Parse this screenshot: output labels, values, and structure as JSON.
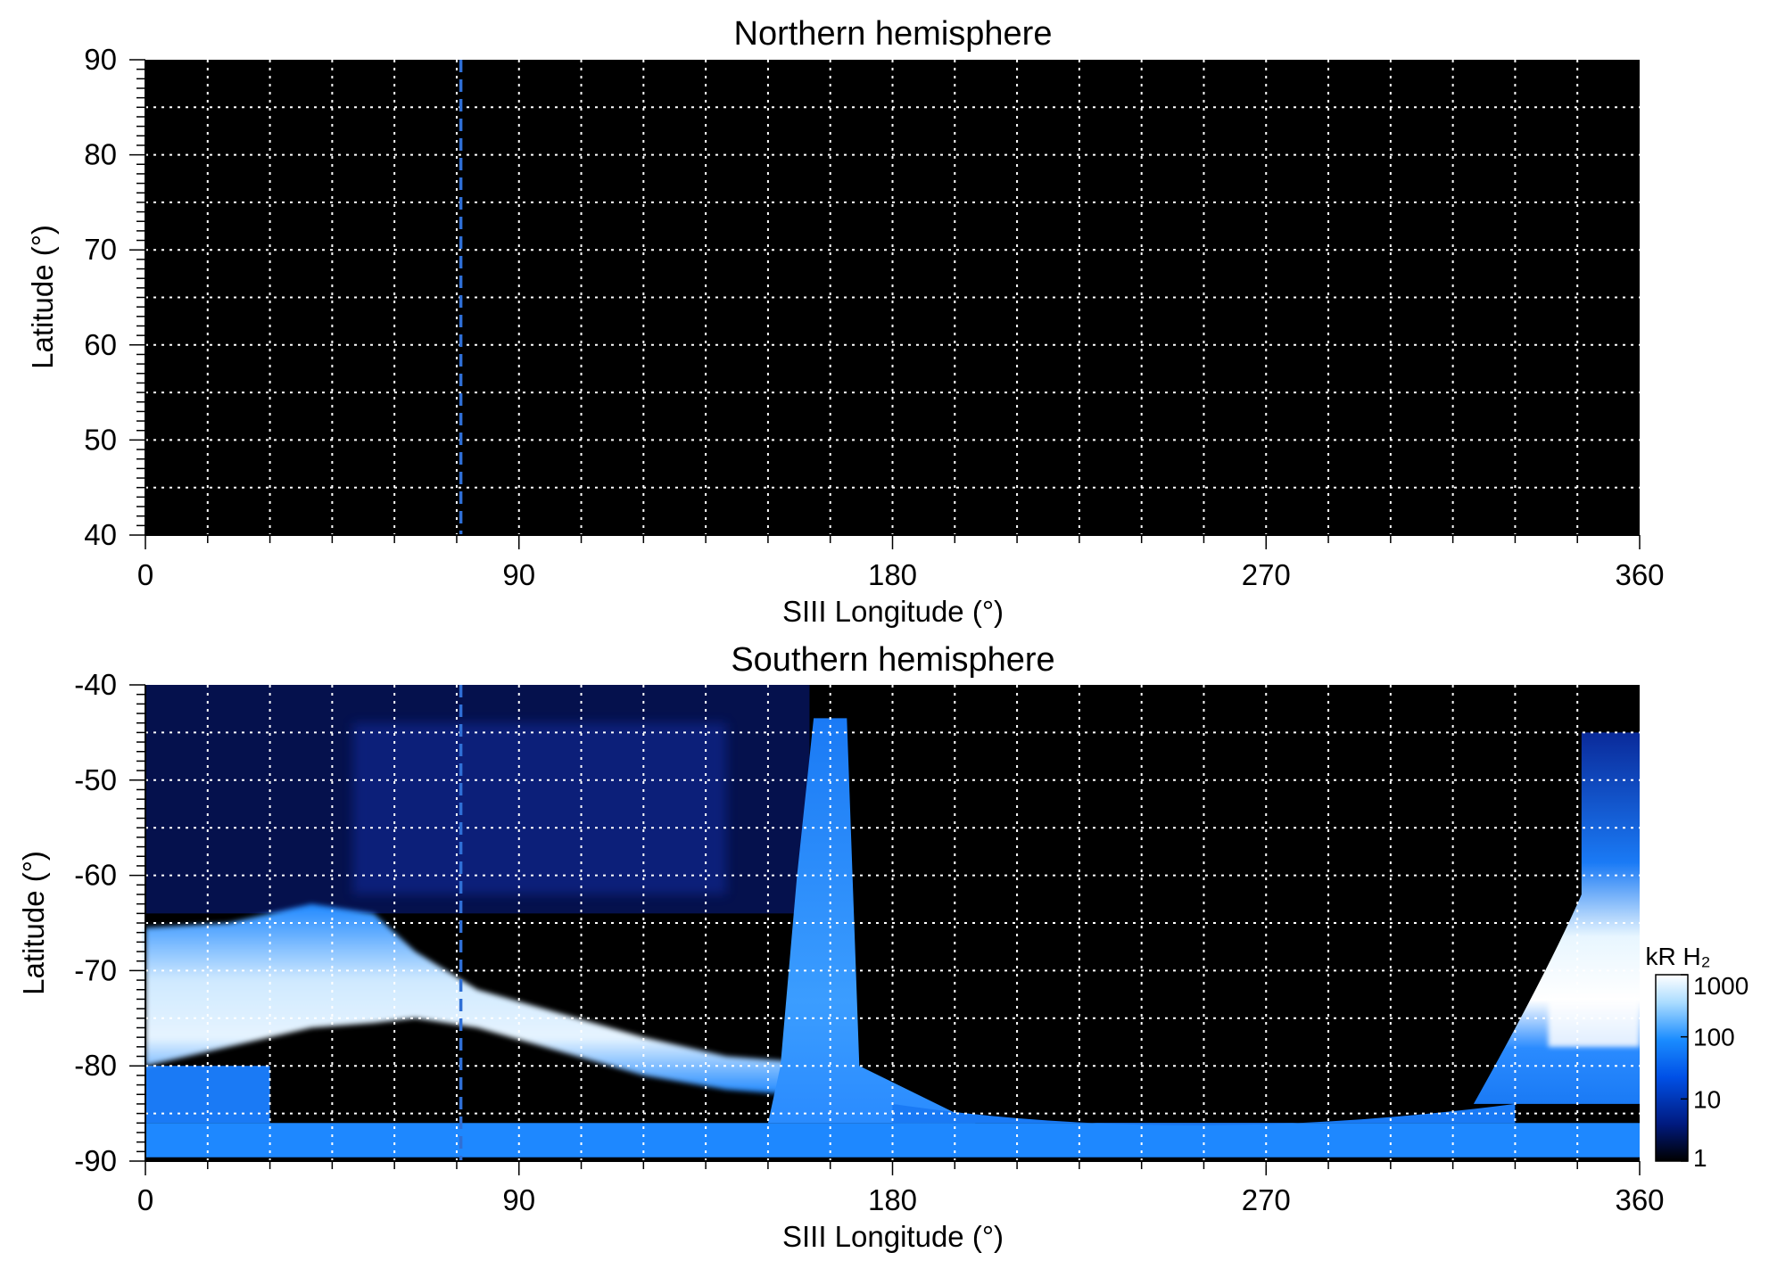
{
  "chart_data": [
    {
      "type": "heatmap",
      "title": "Northern hemisphere",
      "xlabel": "SIII Longitude (°)",
      "ylabel": "Latitude (°)",
      "xlim": [
        0,
        360
      ],
      "ylim": [
        40,
        90
      ],
      "x_ticks": [
        0,
        90,
        180,
        270,
        360
      ],
      "y_ticks": [
        40,
        50,
        60,
        70,
        80,
        90
      ],
      "x_grid_step": 15,
      "y_grid_step": 5,
      "grid": true,
      "reference_longitude": 76,
      "background": "#000000",
      "emission_regions": []
    },
    {
      "type": "heatmap",
      "title": "Southern hemisphere",
      "xlabel": "SIII Longitude (°)",
      "ylabel": "Latitude (°)",
      "xlim": [
        0,
        360
      ],
      "ylim": [
        -90,
        -40
      ],
      "x_ticks": [
        0,
        90,
        180,
        270,
        360
      ],
      "y_ticks": [
        -90,
        -80,
        -70,
        -60,
        -50,
        -40
      ],
      "x_grid_step": 15,
      "y_grid_step": 5,
      "grid": true,
      "reference_longitude": 76,
      "background": "#000000",
      "diffuse_region": {
        "lon": [
          0,
          160
        ],
        "lat": [
          -64,
          -40
        ],
        "intensity_kR": 5
      },
      "main_oval": [
        {
          "lon": 0,
          "lat_top": -65.5,
          "lat_bottom": -80
        },
        {
          "lon": 20,
          "lat_top": -65,
          "lat_bottom": -78
        },
        {
          "lon": 40,
          "lat_top": -63,
          "lat_bottom": -76
        },
        {
          "lon": 55,
          "lat_top": -64,
          "lat_bottom": -75.5
        },
        {
          "lon": 65,
          "lat_top": -68,
          "lat_bottom": -75
        },
        {
          "lon": 80,
          "lat_top": -72,
          "lat_bottom": -76
        },
        {
          "lon": 100,
          "lat_top": -74.5,
          "lat_bottom": -78.5
        },
        {
          "lon": 120,
          "lat_top": -77,
          "lat_bottom": -81
        },
        {
          "lon": 140,
          "lat_top": -79,
          "lat_bottom": -82.5
        },
        {
          "lon": 155,
          "lat_top": -79.5,
          "lat_bottom": -83
        },
        {
          "lon": 165,
          "lat_top": -80,
          "lat_bottom": -83
        }
      ],
      "footprint_spike": {
        "top_lat": -43.5,
        "top_lon": [
          161,
          169
        ],
        "bottom_lat": -80,
        "bottom_lon": [
          153,
          172
        ],
        "fan_bottom_lat": -86,
        "fan_bottom_lon": [
          150,
          200
        ]
      },
      "east_oval": {
        "top_lat": -45,
        "lon_at_top": [
          346,
          360
        ],
        "lon_at_bottom": [
          320,
          360
        ],
        "bottom_lat": -84,
        "bright_band_lat": [
          -73,
          -78
        ]
      },
      "polar_cap_band": {
        "lat": [
          -90,
          -86
        ],
        "lon": [
          0,
          360
        ]
      },
      "colorbar": {
        "label": "kR H₂",
        "scale": "log",
        "ticks": [
          "1",
          "10",
          "100",
          "1000"
        ],
        "colors": [
          "#000000",
          "#001a80",
          "#0050e6",
          "#1a8cff",
          "#aadcff",
          "#ffffff"
        ]
      }
    }
  ]
}
